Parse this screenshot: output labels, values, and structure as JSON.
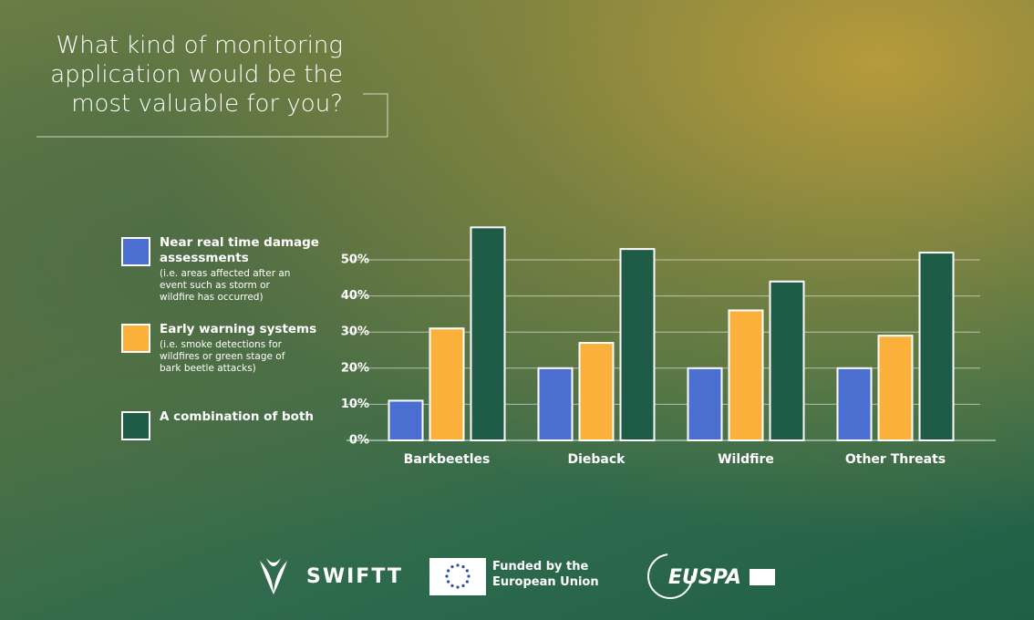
{
  "chart_data": {
    "type": "bar",
    "title": "What kind of monitoring application would be the most valuable for you?",
    "categories": [
      "Barkbeetles",
      "Dieback",
      "Wildfire",
      "Other Threats"
    ],
    "series": [
      {
        "name": "Near real time damage assessments",
        "description": "(i.e. areas affected after an event such as storm or wildfire has occurred)",
        "color": "#4a6fd0",
        "values": [
          11,
          20,
          20,
          20
        ]
      },
      {
        "name": "Early warning systems",
        "description": "(i.e. smoke detections for wildfires or green stage of bark beetle attacks)",
        "color": "#fbb03b",
        "values": [
          31,
          27,
          36,
          29
        ]
      },
      {
        "name": "A combination of both",
        "color": "#1f5c48",
        "values": [
          59,
          53,
          44,
          52
        ]
      }
    ],
    "ylim": [
      0,
      60
    ],
    "yticks": [
      {
        "value": 0,
        "label": "0%"
      },
      {
        "value": 10,
        "label": "10%"
      },
      {
        "value": 20,
        "label": "20%"
      },
      {
        "value": 30,
        "label": "30%"
      },
      {
        "value": 40,
        "label": "40%"
      },
      {
        "value": 50,
        "label": "50%"
      }
    ],
    "grid": true
  },
  "footer": {
    "brand": "SWIFTT",
    "funding": "Funded by the European Union",
    "agency": "EUSPA"
  }
}
